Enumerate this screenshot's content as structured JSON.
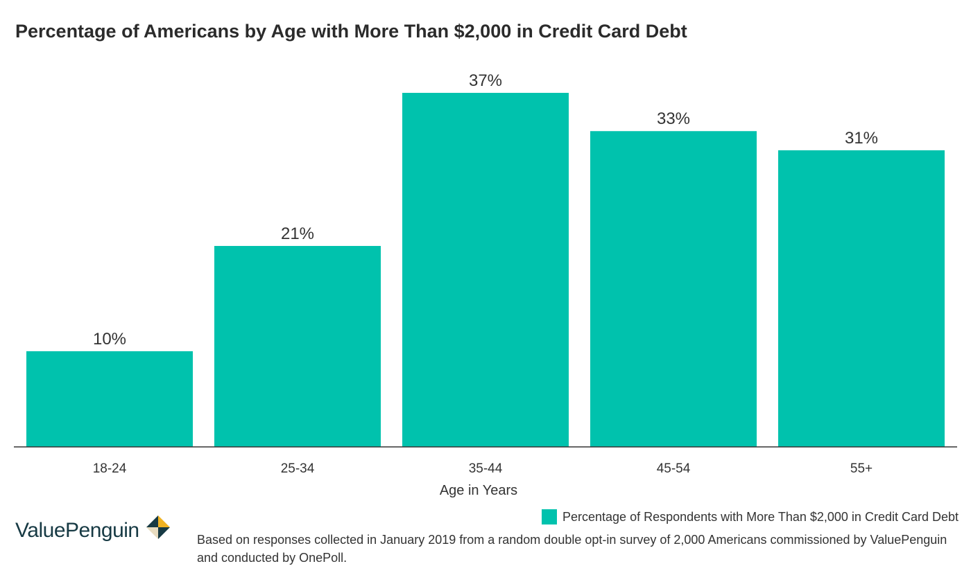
{
  "brand": {
    "name": "ValuePenguin",
    "colors": {
      "navy": "#173a44",
      "gold": "#f0b323",
      "sand": "#e8dcc0"
    }
  },
  "footnote": "Based on responses collected in January 2019 from a random double opt-in survey of 2,000 Americans commissioned by ValuePenguin and conducted by OnePoll.",
  "chart_data": {
    "type": "bar",
    "title": "Percentage of Americans by Age with More Than $2,000 in Credit Card Debt",
    "categories": [
      "18-24",
      "25-34",
      "35-44",
      "45-54",
      "55+"
    ],
    "series": [
      {
        "name": "Percentage of Respondents with More Than $2,000 in Credit Card Debt",
        "values": [
          10,
          21,
          37,
          33,
          31
        ],
        "labels": [
          "10%",
          "21%",
          "37%",
          "33%",
          "31%"
        ],
        "color": "#00c2ad"
      }
    ],
    "xlabel": "Age in Years",
    "ylabel": "",
    "ylim": [
      0,
      37
    ],
    "grid": false,
    "legend": "bottom-right"
  }
}
